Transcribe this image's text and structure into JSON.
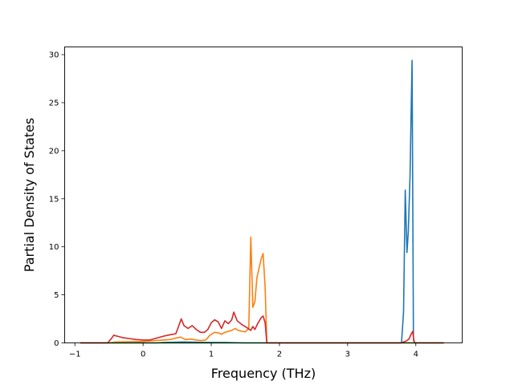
{
  "chart_data": {
    "type": "line",
    "title": "",
    "xlabel": "Frequency (THz)",
    "ylabel": "Partial Density of States",
    "xlim": [
      -1.15,
      4.68
    ],
    "ylim": [
      0,
      30.8
    ],
    "xticks": [
      -1,
      0,
      1,
      2,
      3,
      4
    ],
    "yticks": [
      0,
      5,
      10,
      15,
      20,
      25,
      30
    ],
    "xtick_labels": [
      "−1",
      "0",
      "1",
      "2",
      "3",
      "4"
    ],
    "ytick_labels": [
      "0",
      "5",
      "10",
      "15",
      "20",
      "25",
      "30"
    ],
    "grid": false,
    "legend": "none",
    "series": [
      {
        "color": "#1f77b4",
        "points": [
          [
            -0.92,
            0
          ],
          [
            0.2,
            0
          ],
          [
            0.3,
            0.05
          ],
          [
            0.6,
            0.1
          ],
          [
            1.0,
            0.05
          ],
          [
            1.2,
            0.05
          ],
          [
            1.5,
            0
          ],
          [
            3.79,
            0
          ],
          [
            3.82,
            3.2
          ],
          [
            3.845,
            15.9
          ],
          [
            3.87,
            9.4
          ],
          [
            3.89,
            11.6
          ],
          [
            3.915,
            17.4
          ],
          [
            3.945,
            29.4
          ],
          [
            3.965,
            0.5
          ],
          [
            3.98,
            0
          ],
          [
            4.41,
            0
          ]
        ]
      },
      {
        "color": "#ff7f0e",
        "points": [
          [
            -0.92,
            0
          ],
          [
            -0.5,
            0
          ],
          [
            -0.4,
            0.1
          ],
          [
            0,
            0.15
          ],
          [
            0.1,
            0.2
          ],
          [
            0.2,
            0.25
          ],
          [
            0.3,
            0.3
          ],
          [
            0.4,
            0.35
          ],
          [
            0.48,
            0.5
          ],
          [
            0.55,
            0.6
          ],
          [
            0.62,
            0.35
          ],
          [
            0.7,
            0.4
          ],
          [
            0.78,
            0.3
          ],
          [
            0.85,
            0.25
          ],
          [
            0.92,
            0.3
          ],
          [
            0.98,
            0.8
          ],
          [
            1.05,
            1.1
          ],
          [
            1.1,
            1.05
          ],
          [
            1.15,
            0.9
          ],
          [
            1.2,
            1.1
          ],
          [
            1.25,
            1.2
          ],
          [
            1.3,
            1.3
          ],
          [
            1.35,
            1.5
          ],
          [
            1.4,
            1.3
          ],
          [
            1.45,
            1.2
          ],
          [
            1.5,
            1.15
          ],
          [
            1.55,
            1.5
          ],
          [
            1.58,
            11.0
          ],
          [
            1.61,
            3.7
          ],
          [
            1.64,
            4.3
          ],
          [
            1.67,
            6.8
          ],
          [
            1.73,
            8.7
          ],
          [
            1.76,
            9.3
          ],
          [
            1.79,
            5.8
          ],
          [
            1.815,
            0
          ],
          [
            4.41,
            0
          ]
        ]
      },
      {
        "color": "#2ca02c",
        "points": [
          [
            -0.92,
            0
          ],
          [
            4.41,
            0
          ]
        ]
      },
      {
        "color": "#d62728",
        "points": [
          [
            -0.92,
            0
          ],
          [
            -0.52,
            0
          ],
          [
            -0.47,
            0.4
          ],
          [
            -0.43,
            0.8
          ],
          [
            -0.38,
            0.7
          ],
          [
            -0.3,
            0.55
          ],
          [
            -0.2,
            0.45
          ],
          [
            -0.1,
            0.35
          ],
          [
            0,
            0.3
          ],
          [
            0.1,
            0.3
          ],
          [
            0.2,
            0.5
          ],
          [
            0.3,
            0.7
          ],
          [
            0.4,
            0.85
          ],
          [
            0.48,
            0.95
          ],
          [
            0.52,
            1.7
          ],
          [
            0.56,
            2.5
          ],
          [
            0.6,
            1.8
          ],
          [
            0.66,
            1.5
          ],
          [
            0.72,
            1.8
          ],
          [
            0.78,
            1.4
          ],
          [
            0.84,
            1.1
          ],
          [
            0.9,
            1.1
          ],
          [
            0.95,
            1.4
          ],
          [
            1.0,
            2.1
          ],
          [
            1.05,
            2.4
          ],
          [
            1.1,
            2.2
          ],
          [
            1.15,
            1.5
          ],
          [
            1.2,
            2.3
          ],
          [
            1.25,
            2.0
          ],
          [
            1.3,
            2.4
          ],
          [
            1.33,
            3.2
          ],
          [
            1.38,
            2.3
          ],
          [
            1.45,
            1.9
          ],
          [
            1.52,
            1.6
          ],
          [
            1.58,
            1.3
          ],
          [
            1.61,
            1.7
          ],
          [
            1.64,
            1.4
          ],
          [
            1.68,
            2.0
          ],
          [
            1.73,
            2.6
          ],
          [
            1.76,
            2.8
          ],
          [
            1.79,
            2.1
          ],
          [
            1.815,
            0
          ],
          [
            3.78,
            0
          ],
          [
            3.82,
            0.1
          ],
          [
            3.86,
            0.2
          ],
          [
            3.9,
            0.4
          ],
          [
            3.93,
            0.9
          ],
          [
            3.955,
            1.2
          ],
          [
            3.97,
            0.2
          ],
          [
            3.99,
            0
          ],
          [
            4.41,
            0
          ]
        ]
      }
    ]
  }
}
